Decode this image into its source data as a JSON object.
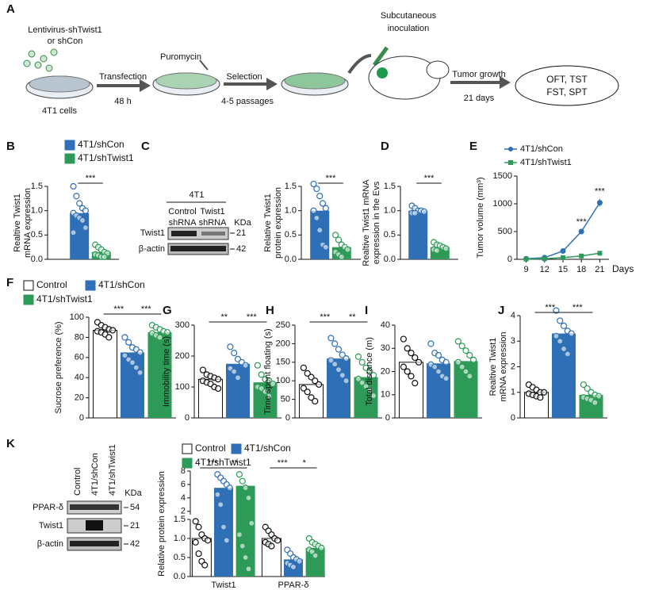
{
  "diagram": {
    "label": "A",
    "lentivirus": [
      "Lentivirus-shTwist1",
      "or shCon"
    ],
    "cells": "4T1 cells",
    "transfection": "Transfection",
    "time": "48 h",
    "puromycin": "Puromycin",
    "selection": "Selection",
    "passages": "4-5 passages",
    "inoculation": [
      "Subcutaneous",
      "inoculation"
    ],
    "growth": "Tumor growth",
    "days": "21 days",
    "tests": [
      "OFT, TST",
      "FST, SPT"
    ]
  },
  "blots": [
    {
      "group": "4T1",
      "lanes": [
        [
          "Control",
          "shRNA"
        ],
        [
          "Twist1",
          "shRNA"
        ]
      ],
      "unit": "KDa",
      "rows": [
        {
          "name": "Twist1",
          "kda": 21
        },
        {
          "name": "β-actin",
          "kda": 42
        }
      ]
    },
    {
      "lanes": [
        "Control",
        "4T1/shCon",
        "4T1/shTwist1"
      ],
      "unit": "KDa",
      "rows": [
        {
          "name": "PPAR-δ",
          "kda": 54
        },
        {
          "name": "Twist1",
          "kda": 21
        },
        {
          "name": "β-actin",
          "kda": 42
        }
      ]
    }
  ],
  "chart_data": [
    {
      "type": "bar",
      "label": "B",
      "ylabel": [
        "Realtive Twist1",
        "mRNA expression"
      ],
      "ylim": [
        0,
        1.5
      ],
      "yticks": [
        {
          "value": 0,
          "label": "0.0"
        },
        0.5,
        {
          "value": 1,
          "label": "1.0"
        },
        1.5
      ],
      "series": [
        {
          "name": "4T1/shCon",
          "color": "#2f6fb5",
          "values": [
            0.95
          ],
          "points": [
            [
              1.5,
              1.3,
              1.15,
              1.05,
              1.0,
              0.95,
              0.9,
              0.85,
              0.8,
              0.65,
              0.55
            ]
          ]
        },
        {
          "name": "4T1/shTwist1",
          "color": "#2e9a57",
          "values": [
            0.15
          ],
          "points": [
            [
              0.3,
              0.25,
              0.2,
              0.15,
              0.12,
              0.1,
              0.08,
              0.05,
              0.05
            ]
          ]
        }
      ],
      "significance": [
        [
          "***"
        ]
      ]
    },
    {
      "type": "bar",
      "label": "C",
      "ylabel": [
        "Relative Twist1",
        "protein expression"
      ],
      "ylim": [
        0,
        1.5
      ],
      "yticks": [
        {
          "value": 0,
          "label": "0.0"
        },
        0.5,
        {
          "value": 1,
          "label": "1.0"
        },
        1.5
      ],
      "series": [
        {
          "color": "#2f6fb5",
          "values": [
            1.0
          ],
          "points": [
            [
              1.55,
              1.45,
              1.3,
              1.15,
              1.05,
              1.0,
              0.85,
              0.6,
              0.3,
              0.25
            ]
          ]
        },
        {
          "color": "#2e9a57",
          "values": [
            0.25
          ],
          "points": [
            [
              0.5,
              0.4,
              0.3,
              0.25,
              0.2,
              0.15,
              0.1,
              0.05
            ]
          ]
        }
      ],
      "significance": [
        [
          "***"
        ]
      ]
    },
    {
      "type": "bar",
      "label": "D",
      "ylabel": [
        "Realtive Twist1 mRNA",
        "expression in the Evs"
      ],
      "ylim": [
        0,
        1.5
      ],
      "yticks": [
        {
          "value": 0,
          "label": "0.0"
        },
        0.5,
        {
          "value": 1,
          "label": "1.0"
        },
        1.5
      ],
      "series": [
        {
          "color": "#2f6fb5",
          "values": [
            1.0
          ],
          "points": [
            [
              1.1,
              1.05,
              1.0,
              1.0,
              0.98,
              0.95,
              0.95
            ]
          ]
        },
        {
          "color": "#2e9a57",
          "values": [
            0.25
          ],
          "points": [
            [
              0.35,
              0.3,
              0.28,
              0.25,
              0.22,
              0.2,
              0.18
            ]
          ]
        }
      ],
      "significance": [
        [
          "***"
        ]
      ]
    },
    {
      "type": "line",
      "label": "E",
      "ylabel": "Tumor volume (mm³)",
      "xlabel": "Days",
      "x": [
        9,
        12,
        15,
        18,
        21
      ],
      "xlim": [
        7.5,
        22.5
      ],
      "xticks": [
        9,
        12,
        15,
        18,
        21
      ],
      "ylim": [
        0,
        1500
      ],
      "yticks": [
        0,
        500,
        1000,
        1500
      ],
      "series": [
        {
          "name": "4T1/shCon",
          "color": "#2f6fb5",
          "marker": "circle",
          "values": [
            10,
            30,
            150,
            500,
            1020
          ],
          "errors": [
            5,
            10,
            20,
            40,
            70
          ]
        },
        {
          "name": "4T1/shTwist1",
          "color": "#2e9a57",
          "marker": "square",
          "values": [
            5,
            10,
            30,
            60,
            110
          ],
          "errors": [
            3,
            5,
            8,
            10,
            15
          ]
        }
      ],
      "annotations": [
        {
          "x": 18,
          "text": "***"
        },
        {
          "x": 21,
          "text": "***"
        }
      ]
    },
    {
      "type": "bar",
      "label": "F",
      "ylabel": "Sucrose preference (%)",
      "ylim": [
        0,
        100
      ],
      "yticks": [
        0,
        20,
        40,
        60,
        80,
        100
      ],
      "series": [
        {
          "name": "Control",
          "color": "#ffffff",
          "values": [
            87
          ],
          "points": [
            [
              95,
              92,
              90,
              88,
              87,
              86,
              85,
              83,
              80
            ]
          ]
        },
        {
          "name": "4T1/shCon",
          "color": "#2f6fb5",
          "values": [
            65
          ],
          "points": [
            [
              80,
              75,
              70,
              68,
              65,
              62,
              58,
              55,
              50,
              45
            ]
          ]
        },
        {
          "name": "4T1/shTwist1",
          "color": "#2e9a57",
          "values": [
            85
          ],
          "points": [
            [
              92,
              90,
              88,
              86,
              85,
              84,
              82,
              80
            ]
          ]
        }
      ],
      "significance": [
        [
          "***",
          "***"
        ]
      ]
    },
    {
      "type": "bar",
      "label": "G",
      "ylabel": "Immobility time (s)",
      "ylim": [
        0,
        300
      ],
      "yticks": [
        0,
        100,
        200,
        300
      ],
      "series": [
        {
          "color": "#ffffff",
          "values": [
            125
          ],
          "points": [
            [
              155,
              140,
              135,
              130,
              125,
              120,
              115,
              110,
              100,
              95
            ]
          ]
        },
        {
          "color": "#2f6fb5",
          "values": [
            175
          ],
          "points": [
            [
              230,
              210,
              190,
              180,
              170,
              160,
              150,
              130
            ]
          ]
        },
        {
          "color": "#2e9a57",
          "values": [
            115
          ],
          "points": [
            [
              170,
              140,
              125,
              120,
              110,
              100,
              95,
              85,
              70
            ]
          ]
        }
      ],
      "significance": [
        [
          "**",
          "***"
        ]
      ]
    },
    {
      "type": "bar",
      "label": "H",
      "ylabel": "Time spent floating (s)",
      "ylim": [
        0,
        250
      ],
      "yticks": [
        0,
        50,
        100,
        150,
        200,
        250
      ],
      "series": [
        {
          "color": "#ffffff",
          "values": [
            90
          ],
          "points": [
            [
              135,
              120,
              110,
              100,
              90,
              80,
              70,
              55,
              45
            ]
          ]
        },
        {
          "color": "#2f6fb5",
          "values": [
            160
          ],
          "points": [
            [
              215,
              200,
              185,
              170,
              160,
              155,
              145,
              130,
              115,
              100
            ]
          ]
        },
        {
          "color": "#2e9a57",
          "values": [
            110
          ],
          "points": [
            [
              165,
              150,
              135,
              125,
              115,
              105,
              95,
              85,
              75,
              60
            ]
          ]
        }
      ],
      "significance": [
        [
          "***",
          "**"
        ]
      ]
    },
    {
      "type": "bar",
      "label": "I",
      "ylabel": "Total distance (m)",
      "ylim": [
        0,
        40
      ],
      "yticks": [
        0,
        10,
        20,
        30,
        40
      ],
      "series": [
        {
          "color": "#ffffff",
          "values": [
            24
          ],
          "points": [
            [
              34,
              30,
              28,
              26,
              24,
              22,
              20,
              18,
              15
            ]
          ]
        },
        {
          "color": "#2f6fb5",
          "values": [
            23.5
          ],
          "points": [
            [
              32,
              28,
              27,
              25,
              24,
              23,
              22,
              20,
              18,
              17
            ]
          ]
        },
        {
          "color": "#2e9a57",
          "values": [
            24.5
          ],
          "points": [
            [
              33,
              31,
              29,
              27,
              25,
              24,
              22,
              20,
              18
            ]
          ]
        }
      ],
      "significance": [
        []
      ]
    },
    {
      "type": "bar",
      "label": "J",
      "ylabel": [
        "Realtive Twist1",
        "mRNA expression"
      ],
      "ylim": [
        0,
        4
      ],
      "yticks": [
        0,
        1,
        2,
        3,
        4
      ],
      "series": [
        {
          "color": "#ffffff",
          "values": [
            1.0
          ],
          "points": [
            [
              1.3,
              1.2,
              1.1,
              1.0,
              1.0,
              0.95,
              0.9,
              0.85,
              0.8
            ]
          ]
        },
        {
          "color": "#2f6fb5",
          "values": [
            3.3
          ],
          "points": [
            [
              4.2,
              3.8,
              3.6,
              3.4,
              3.3,
              3.2,
              3.0,
              2.7,
              2.5
            ]
          ]
        },
        {
          "color": "#2e9a57",
          "values": [
            0.9
          ],
          "points": [
            [
              1.3,
              1.15,
              1.0,
              0.9,
              0.85,
              0.8,
              0.75,
              0.7,
              0.6
            ]
          ]
        }
      ],
      "significance": [
        [
          "***",
          "***"
        ]
      ]
    },
    {
      "type": "bar",
      "label": "K",
      "ylabel": "Relative protein expression",
      "categories": [
        "Twist1",
        "PPAR-δ"
      ],
      "ylim": [
        0,
        8
      ],
      "ybreak": 1.5,
      "yticks": [
        {
          "value": 0,
          "label": "0.0"
        },
        0.5,
        {
          "value": 1,
          "label": "1.0"
        },
        1.5,
        2,
        4,
        6,
        8
      ],
      "series": [
        {
          "name": "Control",
          "color": "#ffffff",
          "values": [
            1.0,
            1.0
          ],
          "points": [
            [
              1.45,
              1.3,
              1.1,
              1.0,
              0.95,
              0.9,
              0.6,
              0.4,
              0.3
            ],
            [
              1.3,
              1.2,
              1.1,
              1.0,
              0.95,
              0.9,
              0.85,
              0.8
            ]
          ]
        },
        {
          "name": "4T1/shCon",
          "color": "#2f6fb5",
          "values": [
            5.5,
            0.45
          ],
          "points": [
            [
              7.5,
              7,
              6.5,
              6,
              5.5,
              4.5,
              3,
              1.3,
              0.95
            ],
            [
              0.7,
              0.6,
              0.5,
              0.45,
              0.4,
              0.35,
              0.3,
              0.25
            ]
          ]
        },
        {
          "name": "4T1/shTwist1",
          "color": "#2e9a57",
          "values": [
            5.8,
            0.75
          ],
          "points": [
            [
              7.5,
              6.5,
              5.5,
              4,
              1.4,
              1.1,
              0.8,
              0.5,
              0.2
            ],
            [
              1.0,
              0.9,
              0.85,
              0.8,
              0.75,
              0.7,
              0.65,
              0.55
            ]
          ]
        }
      ],
      "significance": [
        [
          "***",
          "**"
        ],
        [
          "***",
          "*"
        ]
      ]
    }
  ]
}
